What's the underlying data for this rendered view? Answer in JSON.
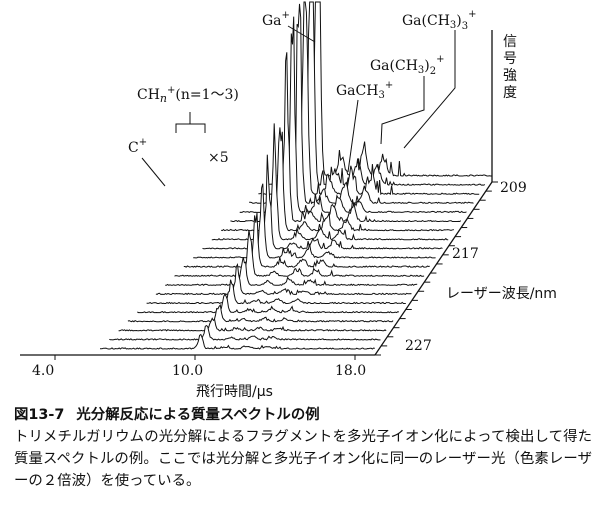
{
  "figure": {
    "label": "図13-7",
    "title": "光分解反応による質量スペクトルの例",
    "caption": "トリメチルガリウムの光分解によるフラグメントを多光子イオン化によって検出して得た質量スペクトルの例。ここでは光分解と多光子イオン化に同一のレーザー光（色素レーザーの２倍波）を使っている。"
  },
  "chart_data": {
    "type": "line",
    "subtype": "waterfall-3d",
    "xlabel": "飛行時間/μs",
    "x_ticks": [
      "4.0",
      "10.0",
      "18.0"
    ],
    "depth_label": "レーザー波長/nm",
    "depth_ticks": [
      "209",
      "217",
      "227"
    ],
    "zlabel": "信号強度",
    "annotations": {
      "c_plus": "C",
      "ch_n": "CH",
      "ch_n_range": "(n=1〜3)",
      "scale_factor": "×5",
      "ga_plus": "Ga",
      "gach3_plus": "GaCH",
      "ga_ch3_2_plus": "Ga(CH",
      "ga_ch3_3_plus": "Ga(CH"
    },
    "series_count": 20,
    "peaks": [
      {
        "name": "C+",
        "tof": 3.6
      },
      {
        "name": "CHn+",
        "tof": 4.4
      },
      {
        "name": "Ga+",
        "tof": 10.8
      },
      {
        "name": "GaCH3+",
        "tof": 11.9
      },
      {
        "name": "Ga(CH3)2+",
        "tof": 12.9
      },
      {
        "name": "Ga(CH3)3+",
        "tof": 13.8
      }
    ]
  }
}
